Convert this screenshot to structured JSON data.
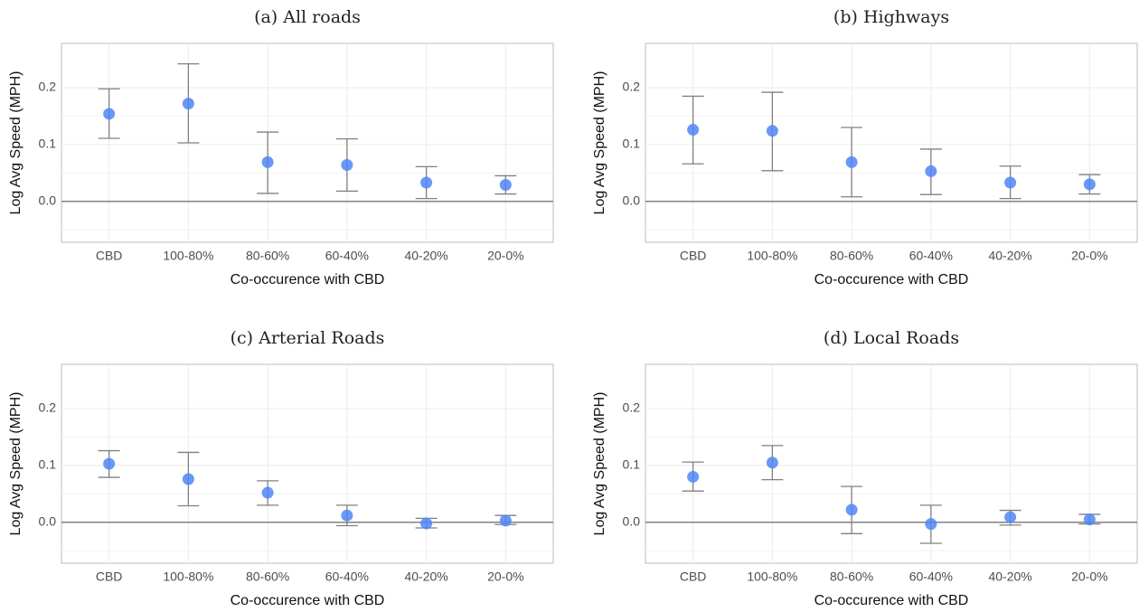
{
  "chart_data": [
    {
      "type": "errorbar",
      "title": "(a) All roads",
      "xlabel": "Co-occurence with CBD",
      "ylabel": "Log Avg Speed (MPH)",
      "categories": [
        "CBD",
        "100-80%",
        "80-60%",
        "60-40%",
        "40-20%",
        "20-0%"
      ],
      "values": [
        0.154,
        0.172,
        0.069,
        0.064,
        0.033,
        0.029
      ],
      "lower": [
        0.111,
        0.103,
        0.014,
        0.018,
        0.005,
        0.013
      ],
      "upper": [
        0.198,
        0.242,
        0.122,
        0.11,
        0.061,
        0.045
      ],
      "color": "#4f86f7",
      "error_color": "#808080",
      "hline": 0,
      "ylim": [
        -0.072,
        0.278
      ],
      "yticks": [
        {
          "value": 0,
          "label": "0.0"
        },
        0.1,
        0.2
      ],
      "grid": true
    },
    {
      "type": "errorbar",
      "title": "(b) Highways",
      "xlabel": "Co-occurence with CBD",
      "ylabel": "Log Avg Speed (MPH)",
      "categories": [
        "CBD",
        "100-80%",
        "80-60%",
        "60-40%",
        "40-20%",
        "20-0%"
      ],
      "values": [
        0.126,
        0.124,
        0.069,
        0.053,
        0.033,
        0.03
      ],
      "lower": [
        0.066,
        0.054,
        0.008,
        0.012,
        0.005,
        0.013
      ],
      "upper": [
        0.185,
        0.192,
        0.13,
        0.092,
        0.062,
        0.047
      ],
      "color": "#4f86f7",
      "error_color": "#808080",
      "hline": 0,
      "ylim": [
        -0.072,
        0.278
      ],
      "yticks": [
        {
          "value": 0,
          "label": "0.0"
        },
        0.1,
        0.2
      ],
      "grid": true
    },
    {
      "type": "errorbar",
      "title": "(c) Arterial Roads",
      "xlabel": "Co-occurence with CBD",
      "ylabel": "Log Avg Speed (MPH)",
      "categories": [
        "CBD",
        "100-80%",
        "80-60%",
        "60-40%",
        "40-20%",
        "20-0%"
      ],
      "values": [
        0.103,
        0.076,
        0.052,
        0.012,
        -0.002,
        0.003
      ],
      "lower": [
        0.079,
        0.029,
        0.03,
        -0.006,
        -0.01,
        -0.004
      ],
      "upper": [
        0.126,
        0.123,
        0.073,
        0.03,
        0.007,
        0.012
      ],
      "color": "#4f86f7",
      "error_color": "#808080",
      "hline": 0,
      "ylim": [
        -0.072,
        0.278
      ],
      "yticks": [
        {
          "value": 0,
          "label": "0.0"
        },
        0.1,
        0.2
      ],
      "grid": true
    },
    {
      "type": "errorbar",
      "title": "(d) Local Roads",
      "xlabel": "Co-occurence with CBD",
      "ylabel": "Log Avg Speed (MPH)",
      "categories": [
        "CBD",
        "100-80%",
        "80-60%",
        "60-40%",
        "40-20%",
        "20-0%"
      ],
      "values": [
        0.08,
        0.105,
        0.022,
        -0.003,
        0.009,
        0.005
      ],
      "lower": [
        0.055,
        0.075,
        -0.02,
        -0.037,
        -0.005,
        -0.003
      ],
      "upper": [
        0.106,
        0.135,
        0.063,
        0.03,
        0.021,
        0.014
      ],
      "color": "#4f86f7",
      "error_color": "#808080",
      "hline": 0,
      "ylim": [
        -0.072,
        0.278
      ],
      "yticks": [
        {
          "value": 0,
          "label": "0.0"
        },
        0.1,
        0.2
      ],
      "grid": true
    }
  ]
}
